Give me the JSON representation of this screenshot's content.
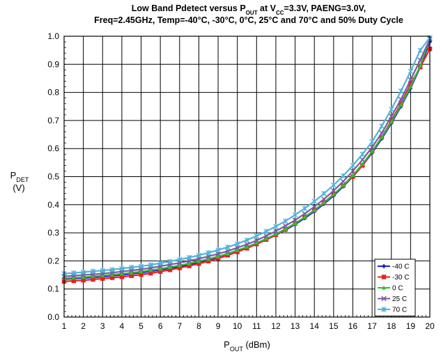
{
  "chart_data": {
    "type": "line",
    "title_lines": [
      {
        "parts": [
          {
            "t": "Low Band Pdetect versus P"
          },
          {
            "t": "OUT",
            "sub": true
          },
          {
            "t": " at V"
          },
          {
            "t": "CC",
            "sub": true
          },
          {
            "t": "=3.3V, PAENG=3.0V,"
          }
        ]
      },
      {
        "parts": [
          {
            "t": "Freq=2.45GHz, Temp=-40°C, -30°C, 0°C, 25°C and 70°C and 50% Duty Cycle"
          }
        ]
      }
    ],
    "xlabel": {
      "main": "P",
      "sub": "OUT",
      "rest": " (dBm)"
    },
    "ylabel": {
      "main": "P",
      "sub": "DET",
      "unit": "(V)"
    },
    "xlim": [
      1,
      20
    ],
    "ylim": [
      0,
      1.0
    ],
    "x_ticks": [
      "1",
      "2",
      "3",
      "4",
      "5",
      "6",
      "7",
      "8",
      "9",
      "10",
      "11",
      "12",
      "13",
      "14",
      "15",
      "16",
      "17",
      "18",
      "19",
      "20"
    ],
    "y_ticks": [
      "0.0",
      "0.1",
      "0.2",
      "0.3",
      "0.4",
      "0.5",
      "0.6",
      "0.7",
      "0.8",
      "0.9",
      "1.0"
    ],
    "grid": true,
    "legend_position": "bottom-right",
    "x": [
      1,
      1.5,
      2,
      2.5,
      3,
      3.5,
      4,
      4.5,
      5,
      5.5,
      6,
      6.5,
      7,
      7.5,
      8,
      8.5,
      9,
      9.5,
      10,
      10.5,
      11,
      11.5,
      12,
      12.5,
      13,
      13.5,
      14,
      14.5,
      15,
      15.5,
      16,
      16.5,
      17,
      17.5,
      18,
      18.5,
      19,
      19.5,
      20
    ],
    "series": [
      {
        "name": "-40 C",
        "color": "#1f1fd6",
        "marker": "diamond",
        "values": [
          0.135,
          0.137,
          0.139,
          0.141,
          0.144,
          0.147,
          0.15,
          0.154,
          0.158,
          0.163,
          0.168,
          0.174,
          0.18,
          0.187,
          0.195,
          0.203,
          0.212,
          0.222,
          0.234,
          0.246,
          0.26,
          0.275,
          0.292,
          0.31,
          0.33,
          0.352,
          0.376,
          0.403,
          0.432,
          0.465,
          0.5,
          0.54,
          0.585,
          0.635,
          0.69,
          0.75,
          0.815,
          0.89,
          0.98
        ]
      },
      {
        "name": "-30 C",
        "color": "#e82020",
        "marker": "square",
        "values": [
          0.127,
          0.129,
          0.131,
          0.134,
          0.137,
          0.14,
          0.143,
          0.147,
          0.151,
          0.156,
          0.162,
          0.168,
          0.175,
          0.182,
          0.19,
          0.199,
          0.209,
          0.22,
          0.232,
          0.245,
          0.26,
          0.276,
          0.293,
          0.312,
          0.333,
          0.356,
          0.381,
          0.408,
          0.437,
          0.468,
          0.5,
          0.54,
          0.59,
          0.64,
          0.7,
          0.76,
          0.83,
          0.89,
          0.955
        ]
      },
      {
        "name": "0 C",
        "color": "#30c030",
        "marker": "triangle",
        "values": [
          0.138,
          0.14,
          0.142,
          0.145,
          0.148,
          0.151,
          0.154,
          0.158,
          0.162,
          0.167,
          0.172,
          0.178,
          0.184,
          0.191,
          0.199,
          0.207,
          0.216,
          0.226,
          0.238,
          0.25,
          0.264,
          0.279,
          0.296,
          0.314,
          0.334,
          0.356,
          0.38,
          0.407,
          0.436,
          0.469,
          0.505,
          0.545,
          0.59,
          0.64,
          0.695,
          0.755,
          0.82,
          0.895,
          0.99
        ]
      },
      {
        "name": "25 C",
        "color": "#7b5aa6",
        "marker": "x",
        "values": [
          0.145,
          0.147,
          0.15,
          0.152,
          0.155,
          0.158,
          0.162,
          0.166,
          0.17,
          0.175,
          0.181,
          0.187,
          0.193,
          0.2,
          0.208,
          0.216,
          0.225,
          0.235,
          0.247,
          0.259,
          0.273,
          0.289,
          0.306,
          0.325,
          0.345,
          0.368,
          0.393,
          0.42,
          0.45,
          0.483,
          0.52,
          0.56,
          0.605,
          0.655,
          0.715,
          0.775,
          0.845,
          0.915,
          0.99
        ]
      },
      {
        "name": "70 C",
        "color": "#4fb3d9",
        "marker": "star",
        "values": [
          0.155,
          0.157,
          0.16,
          0.163,
          0.166,
          0.169,
          0.173,
          0.177,
          0.181,
          0.186,
          0.192,
          0.198,
          0.205,
          0.212,
          0.22,
          0.229,
          0.239,
          0.249,
          0.261,
          0.274,
          0.289,
          0.305,
          0.323,
          0.342,
          0.364,
          0.387,
          0.412,
          0.44,
          0.47,
          0.503,
          0.54,
          0.58,
          0.625,
          0.68,
          0.74,
          0.805,
          0.875,
          0.95,
          0.995
        ]
      }
    ]
  }
}
